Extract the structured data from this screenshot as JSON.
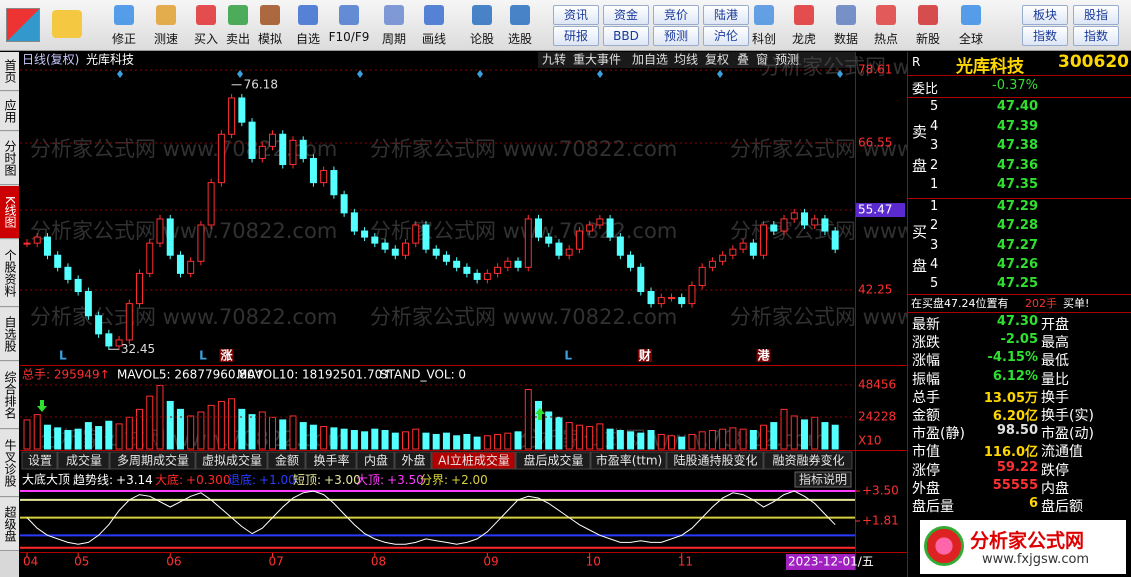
{
  "toolbar": {
    "items": [
      "修正",
      "测速",
      "买入",
      "卖出",
      "模拟",
      "自选",
      "F10/F9",
      "周期",
      "画线",
      "论股",
      "选股",
      [
        "资讯",
        "研报"
      ],
      [
        "资金",
        "BBD"
      ],
      [
        "竞价",
        "预测"
      ],
      [
        "陆港",
        "沪伦"
      ],
      "科创",
      "龙虎",
      "数据",
      "热点",
      "新股",
      "全球",
      [
        "板块",
        "指数"
      ],
      [
        "股指",
        "指数"
      ]
    ]
  },
  "side_tabs": {
    "items": [
      "首页",
      "应用",
      "分时图",
      "K线图",
      "个股资料",
      "自选股",
      "综合排名",
      "牛叉诊股",
      "超级盘"
    ]
  },
  "chart": {
    "period": "日线(复权)",
    "stock": "光库科技",
    "buttons": [
      "九转",
      "重大事件",
      "加自选",
      "均线",
      "复权",
      "叠",
      "窗",
      "预测"
    ],
    "watermark": "分析家公式网 www.70822.com",
    "price": {
      "ylim": [
        29.85,
        81.6
      ],
      "yticks": [
        78.61,
        66.55,
        55.47,
        42.25
      ],
      "closes": [
        50,
        51,
        48,
        46,
        44,
        42,
        38,
        35,
        33,
        34,
        40,
        45,
        50,
        54,
        48,
        45,
        47,
        53,
        60,
        68,
        74,
        70,
        64,
        66,
        68,
        63,
        67,
        64,
        60,
        62,
        58,
        55,
        52,
        51,
        50,
        49,
        48,
        50,
        53,
        49,
        48,
        47,
        46,
        45,
        44,
        45,
        46,
        47,
        46,
        54,
        51,
        50,
        48,
        49,
        52,
        53,
        54,
        51,
        48,
        46,
        42,
        40,
        41,
        41,
        40,
        43,
        46,
        47,
        48,
        49,
        50,
        48,
        53,
        52,
        54,
        55,
        53,
        54,
        52,
        49
      ],
      "annotations": [
        {
          "x": 20,
          "value": 76.18
        },
        {
          "x": 8,
          "value": 32.45
        }
      ],
      "events": [
        {
          "x": 3.5,
          "label": "L"
        },
        {
          "x": 17.2,
          "label": "L"
        },
        {
          "x": 19.5,
          "label": "涨"
        },
        {
          "x": 52.9,
          "label": "L"
        },
        {
          "x": 60.4,
          "label": "财"
        },
        {
          "x": 72,
          "label": "港"
        }
      ]
    },
    "volume": {
      "header": [
        "总手: 295949↑",
        "MAVOL5: 26877960.80↑",
        "MAVOL10: 18192501.70↑",
        "STAND_VOL: 0"
      ],
      "ylim": [
        0,
        61300
      ],
      "yticks": [
        48456,
        24228
      ],
      "unit": "X10",
      "values": [
        22000,
        26000,
        18000,
        16000,
        14000,
        15000,
        20000,
        17000,
        21000,
        19000,
        24000,
        30000,
        40000,
        48000,
        36000,
        30000,
        25000,
        28000,
        33000,
        36000,
        38000,
        30000,
        26000,
        28000,
        24000,
        22000,
        25000,
        20000,
        18000,
        17000,
        16000,
        15000,
        14000,
        13000,
        15000,
        14000,
        12000,
        13000,
        15000,
        12000,
        11000,
        12000,
        10000,
        11000,
        9000,
        10000,
        11000,
        12000,
        13000,
        45000,
        36000,
        28000,
        24000,
        20000,
        18000,
        17000,
        19000,
        15000,
        14000,
        13000,
        12000,
        14000,
        11000,
        10000,
        9000,
        11000,
        13000,
        14000,
        15000,
        16000,
        15000,
        14000,
        18000,
        20000,
        30000,
        25000,
        22000,
        24000,
        20000,
        18000
      ]
    },
    "tabs": [
      "设置",
      "成交量",
      "多周期成交量",
      "虚拟成交量",
      "金额",
      "换手率",
      "内盘",
      "外盘",
      "AI立桩成交量",
      "盘后成交量",
      "市盈率(ttm)",
      "陆股通持股变化",
      "融资融券变化"
    ],
    "indicator": {
      "title": "大底大顶",
      "help": "指标说明",
      "ylim": [
        0.06,
        3.84
      ],
      "yticks": [
        {
          "value": 3.5,
          "label": "+3.50"
        },
        {
          "value": 1.81,
          "label": "+1.81"
        }
      ],
      "legend": [
        {
          "name": "趋势线:",
          "label": "+3.14",
          "color": "#ffffff"
        },
        {
          "name": "大底:",
          "label": "+0.300",
          "value": 0.3,
          "color": "#ff2a2a"
        },
        {
          "name": "退底:",
          "label": "+1.00",
          "value": 1,
          "color": "#2a3cff"
        },
        {
          "name": "短顶:",
          "label": "+3.00",
          "value": 3,
          "color": "#e8e89a"
        },
        {
          "name": "大顶:",
          "label": "+3.50",
          "value": 3.5,
          "color": "#ff3cff"
        },
        {
          "name": "分界:",
          "label": "+2.00",
          "value": 2,
          "color": "#d8d040"
        }
      ],
      "trend": [
        2.0,
        1.4,
        1.0,
        0.8,
        0.6,
        0.5,
        0.6,
        1.0,
        1.6,
        2.4,
        3.0,
        3.3,
        3.2,
        2.9,
        2.6,
        2.9,
        3.2,
        3.4,
        3.0,
        2.5,
        2.0,
        1.5,
        1.1,
        1.4,
        2.0,
        2.6,
        3.1,
        3.4,
        3.5,
        3.3,
        2.8,
        2.2,
        1.6,
        1.1,
        0.8,
        0.6,
        0.5,
        0.5,
        0.6,
        0.8,
        0.7,
        0.6,
        0.5,
        0.6,
        0.8,
        1.2,
        1.8,
        2.4,
        3.0,
        3.2,
        3.1,
        2.8,
        2.4,
        2.0,
        1.6,
        1.3,
        1.0,
        0.8,
        0.6,
        0.6,
        0.7,
        0.6,
        0.6,
        0.8,
        1.0,
        1.4,
        2.0,
        2.6,
        3.1,
        3.4,
        3.3,
        3.0,
        2.6,
        2.9,
        3.3,
        3.5,
        3.2,
        2.8,
        2.2,
        1.6
      ]
    },
    "xticks": [
      {
        "value": 0,
        "label": "04"
      },
      {
        "value": 5,
        "label": "05"
      },
      {
        "value": 14,
        "label": "06"
      },
      {
        "value": 24,
        "label": "07"
      },
      {
        "value": 34,
        "label": "08"
      },
      {
        "value": 45,
        "label": "09"
      },
      {
        "value": 55,
        "label": "10"
      },
      {
        "value": 64,
        "label": "11"
      }
    ],
    "cursor_date": "2023-12-01/五"
  },
  "quote": {
    "flag": "R",
    "name": "光库科技",
    "code": "300620",
    "ratio_label": "委比",
    "ratio": "-0.37%",
    "sell_label": [
      "卖",
      "盘"
    ],
    "sell": [
      {
        "level": 5,
        "price": "47.40"
      },
      {
        "level": 4,
        "price": "47.39"
      },
      {
        "level": 3,
        "price": "47.38"
      },
      {
        "level": 2,
        "price": "47.36"
      },
      {
        "level": 1,
        "price": "47.35"
      }
    ],
    "buy_label": [
      "买",
      "盘"
    ],
    "buy": [
      {
        "level": 1,
        "price": "47.29"
      },
      {
        "level": 2,
        "price": "47.28"
      },
      {
        "level": 3,
        "price": "47.27"
      },
      {
        "level": 4,
        "price": "47.26"
      },
      {
        "level": 5,
        "price": "47.25"
      }
    ],
    "notice": [
      "在买盘47.24位置有",
      "202手",
      "买单!"
    ],
    "stats": [
      [
        "最新",
        "47.30",
        "开盘"
      ],
      [
        "涨跌",
        "-2.05",
        "最高"
      ],
      [
        "涨幅",
        "-4.15%",
        "最低"
      ],
      [
        "振幅",
        "6.12%",
        "量比"
      ],
      [
        "总手",
        "13.05万",
        "换手"
      ],
      [
        "金额",
        "6.20亿",
        "换手(实)"
      ],
      [
        "市盈(静)",
        "98.50",
        "市盈(动)"
      ],
      [
        "市值",
        "116.0亿",
        "流通值"
      ],
      [
        "涨停",
        "59.22",
        "跌停"
      ],
      [
        "外盘",
        "55555",
        "内盘"
      ],
      [
        "盘后量",
        "6",
        "盘后额"
      ]
    ]
  },
  "logo": {
    "name": "分析家公式网",
    "url": "www.fxjgsw.com"
  }
}
